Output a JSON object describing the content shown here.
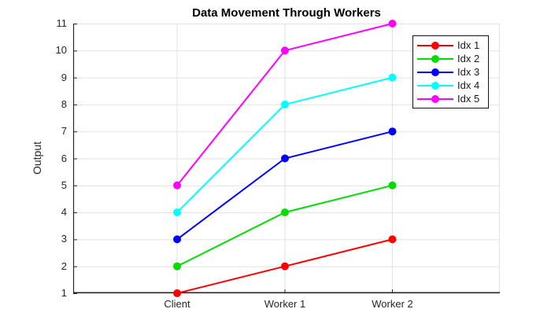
{
  "chart_data": {
    "type": "line",
    "title": "Data Movement Through Workers",
    "xlabel": "",
    "ylabel": "Output",
    "categories": [
      "Client",
      "Worker 1",
      "Worker 2"
    ],
    "series": [
      {
        "name": "Idx 1",
        "color": "#FF0000",
        "values": [
          1,
          2,
          3
        ]
      },
      {
        "name": "Idx 2",
        "color": "#00DC00",
        "values": [
          2,
          4,
          5
        ]
      },
      {
        "name": "Idx 3",
        "color": "#0000FF",
        "values": [
          3,
          6,
          7
        ]
      },
      {
        "name": "Idx 4",
        "color": "#00FFFF",
        "values": [
          4,
          8,
          9
        ]
      },
      {
        "name": "Idx 5",
        "color": "#FF00FF",
        "values": [
          5,
          10,
          11
        ]
      }
    ],
    "ylim": [
      1,
      11
    ],
    "yticks": [
      1,
      2,
      3,
      4,
      5,
      6,
      7,
      8,
      9,
      10,
      11
    ],
    "grid": true,
    "legend": {
      "position": "top-right"
    },
    "axis_color": "#262626",
    "grid_color": "#E2E2E2",
    "background": "#FFFFFF"
  }
}
